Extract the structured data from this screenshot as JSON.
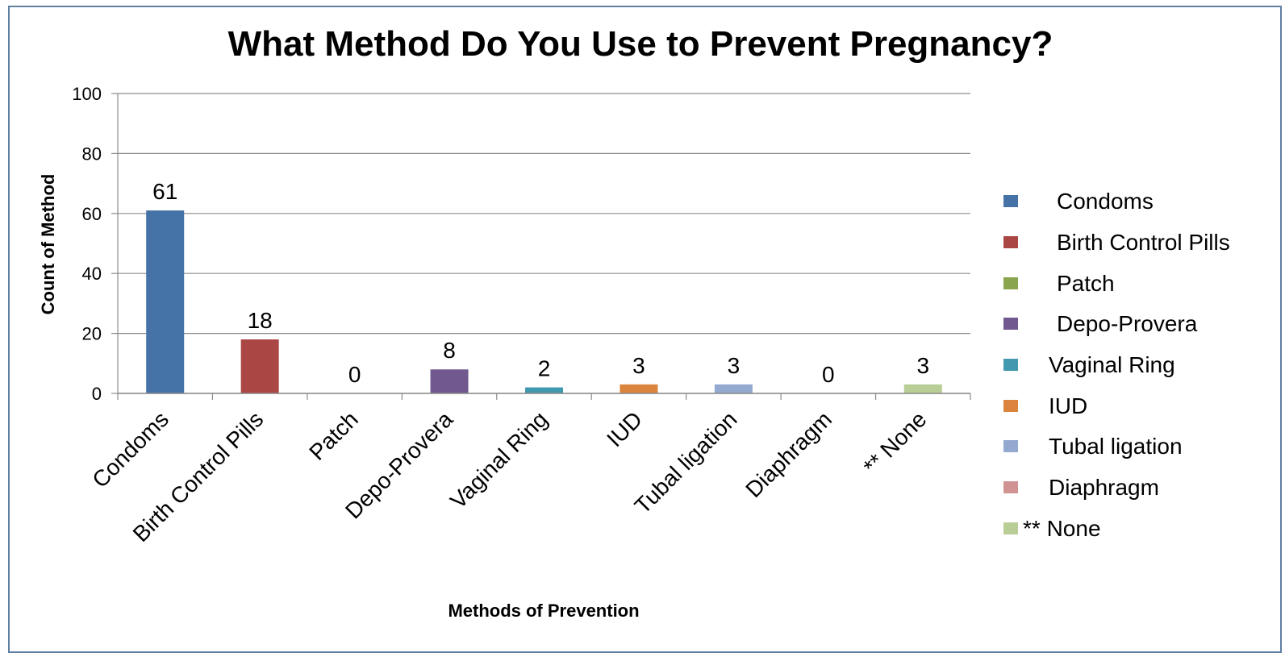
{
  "chart_data": {
    "type": "bar",
    "title": "What Method Do You Use to Prevent Pregnancy?",
    "xlabel": "Methods of Prevention",
    "ylabel": "Count of Method",
    "categories": [
      "Condoms",
      "Birth Control Pills",
      "Patch",
      "Depo-Provera",
      "Vaginal Ring",
      "IUD",
      "Tubal ligation",
      "Diaphragm",
      "** None"
    ],
    "values": [
      61,
      18,
      0,
      8,
      2,
      3,
      3,
      0,
      3
    ],
    "data_labels": [
      "61",
      "18",
      "0",
      "8",
      "2",
      "3",
      "3",
      "0",
      "3"
    ],
    "colors": [
      "#4572a7",
      "#aa4643",
      "#89a54e",
      "#71588f",
      "#4198af",
      "#db843d",
      "#93a9cf",
      "#d19392",
      "#b9cd96"
    ],
    "ylim": [
      0,
      100
    ],
    "yticks": [
      0,
      20,
      40,
      60,
      80,
      100
    ],
    "ytick_labels": [
      "0",
      "20",
      "40",
      "60",
      "80",
      "100"
    ],
    "grid": true,
    "legend_position": "right",
    "legend": [
      {
        "label": "Condoms",
        "color": "#4572a7"
      },
      {
        "label": "Birth Control Pills",
        "color": "#aa4643"
      },
      {
        "label": "Patch",
        "color": "#89a54e"
      },
      {
        "label": "Depo-Provera",
        "color": "#71588f"
      },
      {
        "label": "Vaginal Ring",
        "color": "#4198af"
      },
      {
        "label": "IUD",
        "color": "#db843d"
      },
      {
        "label": "Tubal ligation",
        "color": "#93a9cf"
      },
      {
        "label": "Diaphragm",
        "color": "#d19392"
      },
      {
        "label": "** None",
        "color": "#b9cd96"
      }
    ]
  }
}
